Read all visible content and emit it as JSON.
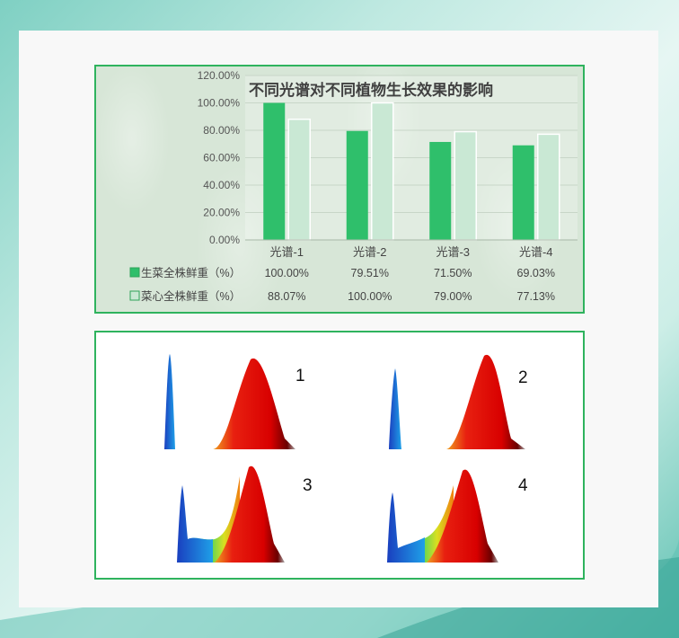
{
  "chart_data": {
    "type": "bar",
    "title": "不同光谱对不同植物生长效果的影响",
    "categories": [
      "光谱-1",
      "光谱-2",
      "光谱-3",
      "光谱-4"
    ],
    "series": [
      {
        "name": "生菜全株鲜重（%）",
        "values": [
          100.0,
          79.51,
          71.5,
          69.03
        ],
        "labels": [
          "100.00%",
          "79.51%",
          "71.50%",
          "69.03%"
        ],
        "color": "#2fbf6b"
      },
      {
        "name": "菜心全株鲜重（%）",
        "values": [
          88.07,
          100.0,
          79.0,
          77.13
        ],
        "labels": [
          "88.07%",
          "100.00%",
          "79.00%",
          "77.13%"
        ],
        "color": "#c9e8d4"
      }
    ],
    "ylim": [
      0,
      120
    ],
    "yticks": [
      0,
      20,
      40,
      60,
      80,
      100,
      120
    ],
    "ytick_labels": [
      "0.00%",
      "20.00%",
      "40.00%",
      "60.00%",
      "80.00%",
      "100.00%",
      "120.00%"
    ],
    "data_table": true
  },
  "spectra": {
    "labels": [
      "1",
      "2",
      "3",
      "4"
    ]
  }
}
